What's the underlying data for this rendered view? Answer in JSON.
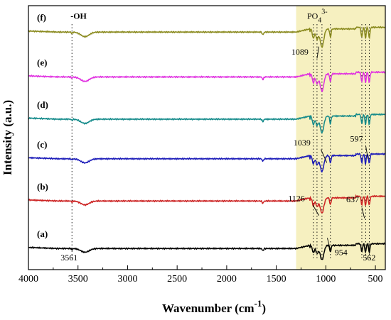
{
  "chart_data": {
    "type": "line",
    "title": "",
    "xlabel_text": "Wavenumber (cm",
    "xlabel_sup": "-1",
    "xlabel_close": ")",
    "ylabel": "Intensity (a.u.)",
    "xlim": [
      4000,
      400
    ],
    "x_ticks": [
      4000,
      3500,
      3000,
      2500,
      2000,
      1500,
      1000,
      500
    ],
    "grid": false,
    "highlight_band": {
      "from": 1300,
      "to": 400,
      "color": "#f6f0c0"
    },
    "region_label": {
      "base": "PO",
      "sub": "4",
      "sup": "3-",
      "x": 1060
    },
    "oh_label": {
      "text": "-OH",
      "x": 3561
    },
    "dotted_markers": [
      3561,
      1126,
      1089,
      1039,
      954,
      637,
      597,
      562
    ],
    "series": [
      {
        "name": "(a)",
        "color": "#000000",
        "base": 0.08
      },
      {
        "name": "(b)",
        "color": "#cc2222",
        "base": 0.26
      },
      {
        "name": "(c)",
        "color": "#1a1ab8",
        "base": 0.42
      },
      {
        "name": "(d)",
        "color": "#138a8a",
        "base": 0.57
      },
      {
        "name": "(e)",
        "color": "#e030e0",
        "base": 0.73
      },
      {
        "name": "(f)",
        "color": "#8a8a1e",
        "base": 0.9
      }
    ],
    "annotations": [
      {
        "text": "3561",
        "x": 3561
      },
      {
        "text": "1126",
        "x": 1126
      },
      {
        "text": "954",
        "x": 954
      },
      {
        "text": "637",
        "x": 637
      },
      {
        "text": "562",
        "x": 562
      },
      {
        "text": "1039",
        "x": 1039
      },
      {
        "text": "597",
        "x": 597
      },
      {
        "text": "1089",
        "x": 1089
      }
    ]
  }
}
